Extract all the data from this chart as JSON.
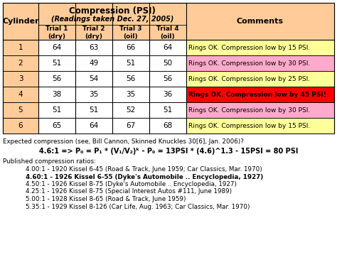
{
  "title_line1": "Compression (PSI)",
  "title_line2": "(Readings taken Dec. 27, 2005)",
  "rows": [
    {
      "cyl": "1",
      "t1": "64",
      "t2": "63",
      "t3": "66",
      "t4": "64",
      "comment": "Rings OK. Compression low by 15 PSI.",
      "comment_bg": "#ffff99",
      "cyl_bg": "#ffcc99"
    },
    {
      "cyl": "2",
      "t1": "51",
      "t2": "49",
      "t3": "51",
      "t4": "50",
      "comment": "Rings OK. Compression low by 30 PSI.",
      "comment_bg": "#ffaacc",
      "cyl_bg": "#ffcc99"
    },
    {
      "cyl": "3",
      "t1": "56",
      "t2": "54",
      "t3": "56",
      "t4": "56",
      "comment": "Rings OK. Compression low by 25 PSI.",
      "comment_bg": "#ffff99",
      "cyl_bg": "#ffcc99"
    },
    {
      "cyl": "4",
      "t1": "38",
      "t2": "35",
      "t3": "35",
      "t4": "36",
      "comment": "Rings OK. Compression low by 45 PSI!",
      "comment_bg": "#ff0000",
      "cyl_bg": "#ffcc99"
    },
    {
      "cyl": "5",
      "t1": "51",
      "t2": "51",
      "t3": "52",
      "t4": "51",
      "comment": "Rings OK. Compression low by 30 PSI.",
      "comment_bg": "#ffaacc",
      "cyl_bg": "#ffcc99"
    },
    {
      "cyl": "6",
      "t1": "65",
      "t2": "64",
      "t3": "67",
      "t4": "68",
      "comment": "Rings OK. Compression low by 15 PSI.",
      "comment_bg": "#ffff99",
      "cyl_bg": "#ffcc99"
    }
  ],
  "header_bg": "#ffcc99",
  "note_line1": "Expected compression (see, Bill Cannon, Skinned Knuckles 30[6], Jan. 2006)?",
  "note_line2": "4.6:1 => P₀ = P₁ * (V₁/V₂)ᵏ - P₀ = 13PSI * (4.6)^1.3 - 15PSI = 80 PSI",
  "published_header": "Published compression ratios:",
  "published_lines": [
    {
      "text": "4.00:1 - 1920 Kissel 6-45 (Road & Track, June 1959; Car Classics, Mar. 1970)",
      "bold": false
    },
    {
      "text": "4.60:1 - 1926 Kissel 6-55 (Dyke's Automobile .. Encyclopedia, 1927)",
      "bold": true
    },
    {
      "text": "4.50:1 - 1926 Kissel 8-75 (Dyke's Automobile .. Encyclopedia, 1927)",
      "bold": false
    },
    {
      "text": "4.25:1 - 1926 Kissel 8-75 (Special Interest Autos #111, June 1989)",
      "bold": false
    },
    {
      "text": "5.00:1 - 1928 Kissel 8-65 (Road & Track, June 1959)",
      "bold": false
    },
    {
      "text": "5.35:1 - 1929 Kissel 8-126 (Car Life, Aug. 1963; Car Classics, Mar. 1970)",
      "bold": false
    }
  ]
}
